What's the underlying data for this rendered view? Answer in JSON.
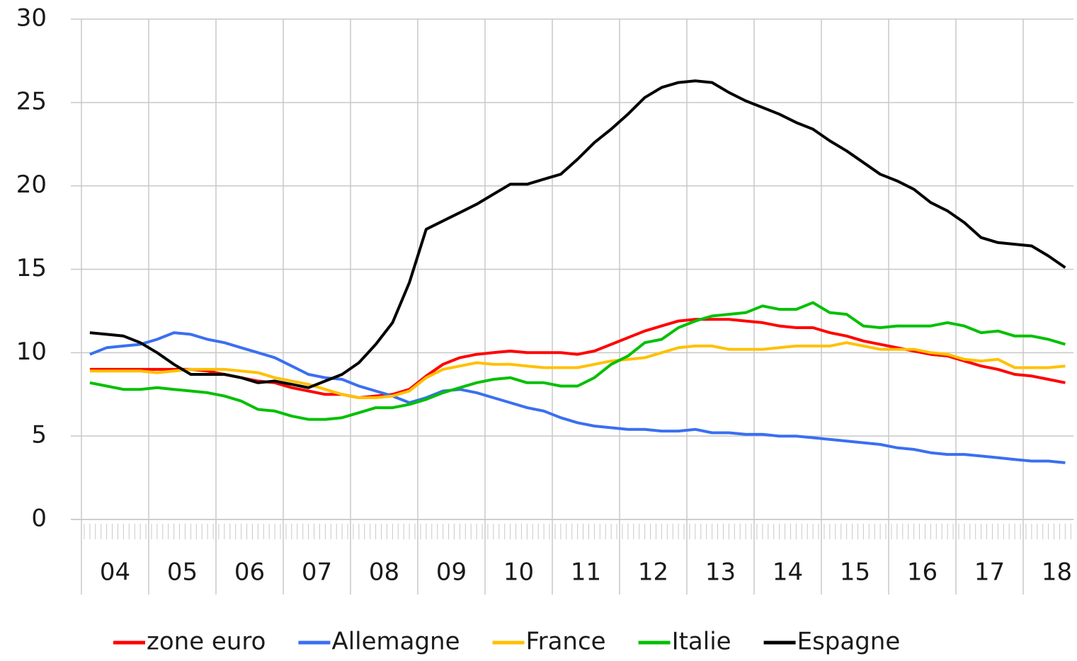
{
  "chart_data": {
    "type": "line",
    "categories": [
      "04",
      null,
      null,
      null,
      "05",
      null,
      null,
      null,
      "06",
      null,
      null,
      null,
      "07",
      null,
      null,
      null,
      "08",
      null,
      null,
      null,
      "09",
      null,
      null,
      null,
      "10",
      null,
      null,
      null,
      "11",
      null,
      null,
      null,
      "12",
      null,
      null,
      null,
      "13",
      null,
      null,
      null,
      "14",
      null,
      null,
      null,
      "15",
      null,
      null,
      null,
      "16",
      null,
      null,
      null,
      "17",
      null,
      null,
      null,
      "18",
      null,
      null
    ],
    "series": [
      {
        "name": "zone euro",
        "color": "#ff0000",
        "values": [
          9.0,
          9.0,
          9.0,
          9.0,
          9.0,
          9.0,
          9.0,
          8.9,
          8.7,
          8.5,
          8.3,
          8.2,
          7.9,
          7.7,
          7.5,
          7.5,
          7.3,
          7.4,
          7.5,
          7.8,
          8.6,
          9.3,
          9.7,
          9.9,
          10.0,
          10.1,
          10.0,
          10.0,
          10.0,
          9.9,
          10.1,
          10.5,
          10.9,
          11.3,
          11.6,
          11.9,
          12.0,
          12.0,
          12.0,
          11.9,
          11.8,
          11.6,
          11.5,
          11.5,
          11.2,
          11.0,
          10.7,
          10.5,
          10.3,
          10.1,
          9.9,
          9.8,
          9.5,
          9.2,
          9.0,
          8.7,
          8.6,
          8.4,
          8.2
        ]
      },
      {
        "name": "Allemagne",
        "color": "#3a6ff0",
        "values": [
          9.9,
          10.3,
          10.4,
          10.5,
          10.8,
          11.2,
          11.1,
          10.8,
          10.6,
          10.3,
          10.0,
          9.7,
          9.2,
          8.7,
          8.5,
          8.4,
          8.0,
          7.7,
          7.4,
          7.0,
          7.3,
          7.7,
          7.8,
          7.6,
          7.3,
          7.0,
          6.7,
          6.5,
          6.1,
          5.8,
          5.6,
          5.5,
          5.4,
          5.4,
          5.3,
          5.3,
          5.4,
          5.2,
          5.2,
          5.1,
          5.1,
          5.0,
          5.0,
          4.9,
          4.8,
          4.7,
          4.6,
          4.5,
          4.3,
          4.2,
          4.0,
          3.9,
          3.9,
          3.8,
          3.7,
          3.6,
          3.5,
          3.5,
          3.4
        ]
      },
      {
        "name": "France",
        "color": "#ffc000",
        "values": [
          8.9,
          8.9,
          8.9,
          8.9,
          8.8,
          8.9,
          9.0,
          9.0,
          9.0,
          8.9,
          8.8,
          8.5,
          8.3,
          8.1,
          7.8,
          7.5,
          7.3,
          7.3,
          7.4,
          7.7,
          8.5,
          9.0,
          9.2,
          9.4,
          9.3,
          9.3,
          9.2,
          9.1,
          9.1,
          9.1,
          9.3,
          9.5,
          9.6,
          9.7,
          10.0,
          10.3,
          10.4,
          10.4,
          10.2,
          10.2,
          10.2,
          10.3,
          10.4,
          10.4,
          10.4,
          10.6,
          10.4,
          10.2,
          10.2,
          10.2,
          10.0,
          9.9,
          9.6,
          9.5,
          9.6,
          9.1,
          9.1,
          9.1,
          9.2
        ]
      },
      {
        "name": "Italie",
        "color": "#00c000",
        "values": [
          8.2,
          8.0,
          7.8,
          7.8,
          7.9,
          7.8,
          7.7,
          7.6,
          7.4,
          7.1,
          6.6,
          6.5,
          6.2,
          6.0,
          6.0,
          6.1,
          6.4,
          6.7,
          6.7,
          6.9,
          7.2,
          7.6,
          7.9,
          8.2,
          8.4,
          8.5,
          8.2,
          8.2,
          8.0,
          8.0,
          8.5,
          9.3,
          9.8,
          10.6,
          10.8,
          11.5,
          11.9,
          12.2,
          12.3,
          12.4,
          12.8,
          12.6,
          12.6,
          13.0,
          12.4,
          12.3,
          11.6,
          11.5,
          11.6,
          11.6,
          11.6,
          11.8,
          11.6,
          11.2,
          11.3,
          11.0,
          11.0,
          10.8,
          10.5
        ]
      },
      {
        "name": "Espagne",
        "color": "#000000",
        "values": [
          11.2,
          11.1,
          11.0,
          10.6,
          10.0,
          9.3,
          8.7,
          8.7,
          8.7,
          8.5,
          8.2,
          8.3,
          8.1,
          7.9,
          8.3,
          8.7,
          9.4,
          10.5,
          11.8,
          14.2,
          17.4,
          17.9,
          18.4,
          18.9,
          19.5,
          20.1,
          20.1,
          20.4,
          20.7,
          21.6,
          22.6,
          23.4,
          24.3,
          25.3,
          25.9,
          26.2,
          26.3,
          26.2,
          25.6,
          25.1,
          24.7,
          24.3,
          23.8,
          23.4,
          22.7,
          22.1,
          21.4,
          20.7,
          20.3,
          19.8,
          19.0,
          18.5,
          17.8,
          16.9,
          16.6,
          16.5,
          16.4,
          15.8,
          15.1
        ]
      }
    ],
    "ylim": [
      0,
      30
    ],
    "yticks": [
      0,
      5,
      10,
      15,
      20,
      25,
      30
    ],
    "grid": true,
    "legend": "bottom"
  }
}
